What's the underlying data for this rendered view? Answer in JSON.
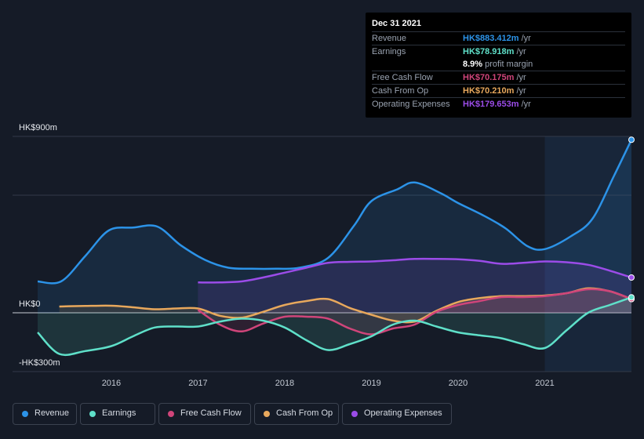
{
  "tooltip": {
    "date": "Dec 31 2021",
    "rows": [
      {
        "label": "Revenue",
        "value": "HK$883.412m",
        "unit": "/yr",
        "color": "#2c93e8"
      },
      {
        "label": "Earnings",
        "value": "HK$78.918m",
        "unit": "/yr",
        "color": "#5fe0c9"
      },
      {
        "label": "",
        "value": "8.9%",
        "unit": "profit margin",
        "color": "#ffffff"
      },
      {
        "label": "Free Cash Flow",
        "value": "HK$70.175m",
        "unit": "/yr",
        "color": "#d0457a"
      },
      {
        "label": "Cash From Op",
        "value": "HK$70.210m",
        "unit": "/yr",
        "color": "#e8a85c"
      },
      {
        "label": "Operating Expenses",
        "value": "HK$179.653m",
        "unit": "/yr",
        "color": "#9b4ce8"
      }
    ]
  },
  "legend": [
    {
      "label": "Revenue",
      "color": "#2c93e8"
    },
    {
      "label": "Earnings",
      "color": "#5fe0c9"
    },
    {
      "label": "Free Cash Flow",
      "color": "#d0457a"
    },
    {
      "label": "Cash From Op",
      "color": "#e8a85c"
    },
    {
      "label": "Operating Expenses",
      "color": "#9b4ce8"
    }
  ],
  "chart_data": {
    "type": "line",
    "y_axis_labels": [
      "HK$900m",
      "HK$0",
      "-HK$300m"
    ],
    "ylim": [
      -300,
      900
    ],
    "xlim": [
      2015.15,
      2022.0
    ],
    "x_ticks": [
      "2016",
      "2017",
      "2018",
      "2019",
      "2020",
      "2021"
    ],
    "x_tick_values": [
      2016,
      2017,
      2018,
      2019,
      2020,
      2021
    ],
    "forecast_region_start": 2021.0,
    "series": [
      {
        "name": "Revenue",
        "color": "#2c93e8",
        "fill": true,
        "x": [
          2015.15,
          2015.42,
          2015.7,
          2015.97,
          2016.25,
          2016.53,
          2016.8,
          2017.08,
          2017.35,
          2017.62,
          2017.9,
          2018.17,
          2018.5,
          2018.8,
          2019.0,
          2019.3,
          2019.5,
          2019.8,
          2020.0,
          2020.3,
          2020.55,
          2020.8,
          2021.0,
          2021.3,
          2021.55,
          2021.8,
          2022.0
        ],
        "y": [
          160,
          160,
          290,
          420,
          435,
          440,
          345,
          270,
          230,
          225,
          225,
          230,
          280,
          445,
          570,
          630,
          665,
          610,
          560,
          495,
          430,
          340,
          325,
          390,
          480,
          700,
          883
        ]
      },
      {
        "name": "Operating Expenses",
        "color": "#9b4ce8",
        "fill": true,
        "x": [
          2017.0,
          2017.25,
          2017.5,
          2017.75,
          2018.0,
          2018.25,
          2018.5,
          2018.75,
          2019.0,
          2019.25,
          2019.5,
          2019.75,
          2020.0,
          2020.25,
          2020.5,
          2020.75,
          2021.0,
          2021.25,
          2021.5,
          2021.75,
          2022.0
        ],
        "y": [
          155,
          155,
          160,
          180,
          205,
          230,
          255,
          260,
          262,
          268,
          275,
          275,
          273,
          265,
          250,
          255,
          262,
          258,
          245,
          215,
          180
        ]
      },
      {
        "name": "Cash From Op",
        "color": "#e8a85c",
        "fill": true,
        "x": [
          2015.4,
          2015.7,
          2016.0,
          2016.25,
          2016.5,
          2016.75,
          2017.0,
          2017.25,
          2017.5,
          2017.75,
          2018.0,
          2018.25,
          2018.5,
          2018.75,
          2019.0,
          2019.25,
          2019.5,
          2019.75,
          2020.0,
          2020.25,
          2020.5,
          2020.75,
          2021.0,
          2021.25,
          2021.5,
          2021.75,
          2022.0
        ],
        "y": [
          32,
          35,
          36,
          28,
          18,
          22,
          22,
          -15,
          -25,
          5,
          40,
          60,
          70,
          25,
          -10,
          -40,
          -45,
          10,
          55,
          75,
          85,
          85,
          88,
          100,
          125,
          110,
          70
        ]
      },
      {
        "name": "Free Cash Flow",
        "color": "#d0457a",
        "fill": true,
        "x": [
          2017.0,
          2017.25,
          2017.5,
          2017.75,
          2018.0,
          2018.25,
          2018.5,
          2018.75,
          2019.0,
          2019.25,
          2019.5,
          2019.75,
          2020.0,
          2020.25,
          2020.5,
          2020.75,
          2021.0,
          2021.25,
          2021.5,
          2021.75,
          2022.0
        ],
        "y": [
          15,
          -60,
          -95,
          -55,
          -20,
          -20,
          -30,
          -80,
          -110,
          -80,
          -60,
          5,
          40,
          60,
          80,
          80,
          85,
          100,
          120,
          110,
          70
        ]
      },
      {
        "name": "Earnings",
        "color": "#5fe0c9",
        "fill": true,
        "x": [
          2015.15,
          2015.4,
          2015.7,
          2016.0,
          2016.25,
          2016.5,
          2016.75,
          2017.0,
          2017.25,
          2017.5,
          2017.75,
          2018.0,
          2018.25,
          2018.5,
          2018.75,
          2019.0,
          2019.25,
          2019.5,
          2019.75,
          2020.0,
          2020.25,
          2020.5,
          2020.75,
          2021.0,
          2021.25,
          2021.5,
          2021.75,
          2022.0
        ],
        "y": [
          -100,
          -210,
          -195,
          -170,
          -120,
          -75,
          -70,
          -70,
          -45,
          -30,
          -40,
          -75,
          -140,
          -190,
          -160,
          -120,
          -60,
          -40,
          -70,
          -100,
          -115,
          -130,
          -160,
          -180,
          -90,
          0,
          40,
          79
        ]
      }
    ]
  }
}
